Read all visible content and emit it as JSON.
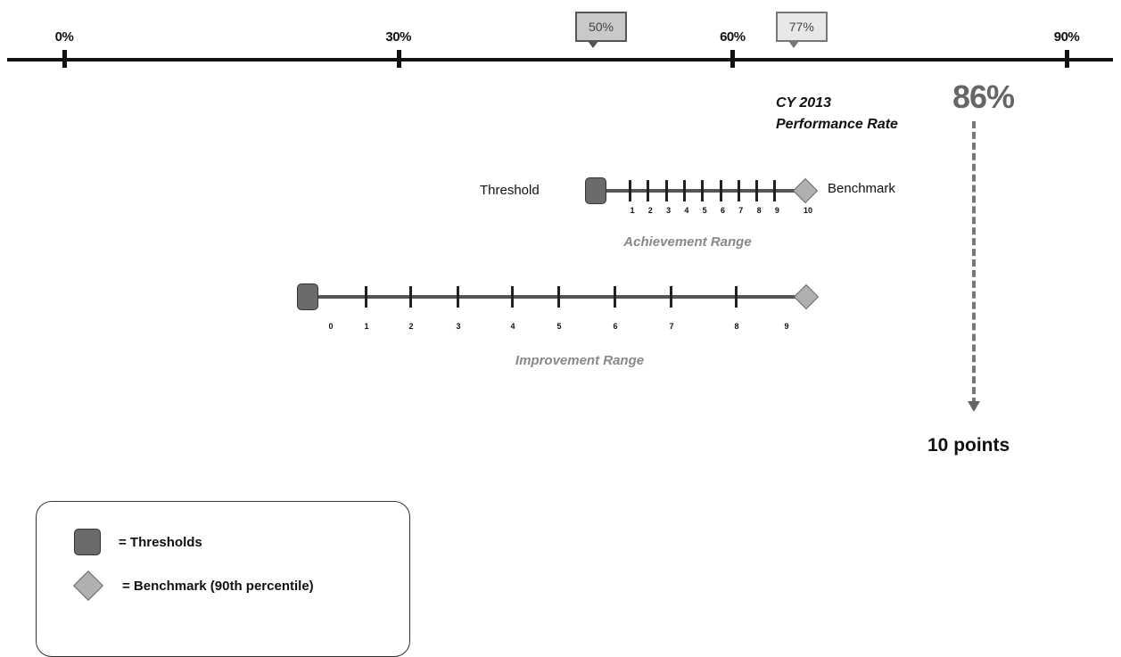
{
  "axis": {
    "ticks": [
      {
        "value": 0,
        "label": "0%"
      },
      {
        "value": 30,
        "label": "30%"
      },
      {
        "value": 60,
        "label": "60%"
      },
      {
        "value": 90,
        "label": "90%"
      }
    ],
    "callouts": [
      {
        "value": 47,
        "label": "50%",
        "style": "dark"
      },
      {
        "value": 65,
        "label": "77%",
        "style": "light"
      }
    ]
  },
  "performance": {
    "label_line1": "CY 2013",
    "label_line2": "Performance Rate",
    "value": "86%",
    "points": "10 points"
  },
  "achievement": {
    "threshold_label": "Threshold",
    "benchmark_label": "Benchmark",
    "numbers": [
      "1",
      "2",
      "3",
      "4",
      "5",
      "6",
      "7",
      "8",
      "9",
      "10"
    ],
    "title": "Achievement Range"
  },
  "improvement": {
    "numbers": [
      "0",
      "1",
      "2",
      "3",
      "4",
      "5",
      "6",
      "7",
      "8",
      "9"
    ],
    "title": "Improvement Range"
  },
  "legend": {
    "threshold_text": "=  Thresholds",
    "benchmark_text": "= Benchmark (90th percentile)"
  },
  "colors": {
    "threshold_fill": "#6b6b6b",
    "benchmark_fill": "#b0b0b0",
    "range_title": "#888888"
  }
}
